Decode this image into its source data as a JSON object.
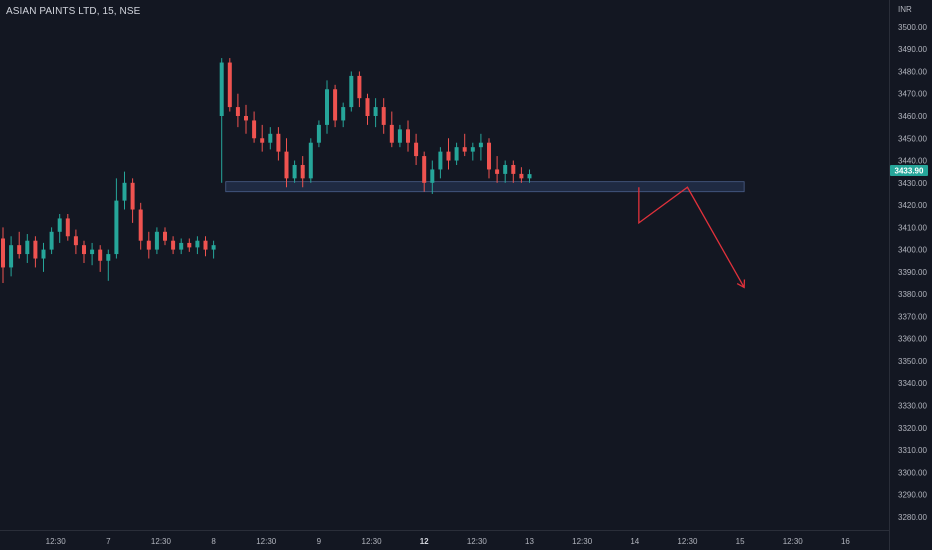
{
  "header": {
    "symbol_title": "ASIAN PAINTS LTD, 15, NSE"
  },
  "price_axis": {
    "currency": "INR"
  },
  "colors": {
    "background": "#131722",
    "up": "#26a69a",
    "down": "#ef5350",
    "zone_fill": "#2a3a5c",
    "zone_stroke": "#4a5f8a",
    "arrow": "#e0313b",
    "axis_text": "#b2b5be",
    "price_label": "#26a69a"
  },
  "chart_data": {
    "type": "candlestick",
    "title": "ASIAN PAINTS LTD, 15, NSE",
    "currency": "INR",
    "ylim": [
      3275,
      3504
    ],
    "y_ticks": [
      3280,
      3290,
      3300,
      3310,
      3320,
      3330,
      3340,
      3350,
      3360,
      3370,
      3380,
      3390,
      3400,
      3410,
      3420,
      3430,
      3440,
      3450,
      3460,
      3470,
      3480,
      3490,
      3500
    ],
    "x_ticks": [
      {
        "label": "12:30",
        "bar": 6.5,
        "bold": false
      },
      {
        "label": "7",
        "bar": 13,
        "bold": false
      },
      {
        "label": "12:30",
        "bar": 19.5,
        "bold": false
      },
      {
        "label": "8",
        "bar": 26,
        "bold": false
      },
      {
        "label": "12:30",
        "bar": 32.5,
        "bold": false
      },
      {
        "label": "9",
        "bar": 39,
        "bold": false
      },
      {
        "label": "12:30",
        "bar": 45.5,
        "bold": false
      },
      {
        "label": "12",
        "bar": 52,
        "bold": true
      },
      {
        "label": "12:30",
        "bar": 58.5,
        "bold": false
      },
      {
        "label": "13",
        "bar": 65,
        "bold": false
      },
      {
        "label": "12:30",
        "bar": 71.5,
        "bold": false
      },
      {
        "label": "14",
        "bar": 78,
        "bold": false
      },
      {
        "label": "12:30",
        "bar": 84.5,
        "bold": false
      },
      {
        "label": "15",
        "bar": 91,
        "bold": false
      },
      {
        "label": "12:30",
        "bar": 97.5,
        "bold": false
      },
      {
        "label": "16",
        "bar": 104,
        "bold": false
      }
    ],
    "last_price": "3433.90",
    "candles": [
      {
        "o": 3405,
        "h": 3410,
        "l": 3385,
        "c": 3392
      },
      {
        "o": 3392,
        "h": 3406,
        "l": 3388,
        "c": 3402
      },
      {
        "o": 3402,
        "h": 3408,
        "l": 3396,
        "c": 3398
      },
      {
        "o": 3398,
        "h": 3407,
        "l": 3394,
        "c": 3404
      },
      {
        "o": 3404,
        "h": 3406,
        "l": 3392,
        "c": 3396
      },
      {
        "o": 3396,
        "h": 3403,
        "l": 3390,
        "c": 3400
      },
      {
        "o": 3400,
        "h": 3410,
        "l": 3398,
        "c": 3408
      },
      {
        "o": 3408,
        "h": 3416,
        "l": 3403,
        "c": 3414
      },
      {
        "o": 3414,
        "h": 3416,
        "l": 3404,
        "c": 3406
      },
      {
        "o": 3406,
        "h": 3409,
        "l": 3398,
        "c": 3402
      },
      {
        "o": 3402,
        "h": 3404,
        "l": 3394,
        "c": 3398
      },
      {
        "o": 3398,
        "h": 3403,
        "l": 3393,
        "c": 3400
      },
      {
        "o": 3400,
        "h": 3402,
        "l": 3390,
        "c": 3395
      },
      {
        "o": 3395,
        "h": 3400,
        "l": 3386,
        "c": 3398
      },
      {
        "o": 3398,
        "h": 3432,
        "l": 3396,
        "c": 3422
      },
      {
        "o": 3422,
        "h": 3435,
        "l": 3418,
        "c": 3430
      },
      {
        "o": 3430,
        "h": 3432,
        "l": 3412,
        "c": 3418
      },
      {
        "o": 3418,
        "h": 3421,
        "l": 3400,
        "c": 3404
      },
      {
        "o": 3404,
        "h": 3408,
        "l": 3396,
        "c": 3400
      },
      {
        "o": 3400,
        "h": 3410,
        "l": 3398,
        "c": 3408
      },
      {
        "o": 3408,
        "h": 3410,
        "l": 3402,
        "c": 3404
      },
      {
        "o": 3404,
        "h": 3406,
        "l": 3398,
        "c": 3400
      },
      {
        "o": 3400,
        "h": 3405,
        "l": 3398,
        "c": 3403
      },
      {
        "o": 3403,
        "h": 3405,
        "l": 3399,
        "c": 3401
      },
      {
        "o": 3401,
        "h": 3406,
        "l": 3398,
        "c": 3404
      },
      {
        "o": 3404,
        "h": 3406,
        "l": 3397,
        "c": 3400
      },
      {
        "o": 3400,
        "h": 3404,
        "l": 3396,
        "c": 3402
      },
      {
        "o": 3460,
        "h": 3486,
        "l": 3430,
        "c": 3484
      },
      {
        "o": 3484,
        "h": 3486,
        "l": 3462,
        "c": 3464
      },
      {
        "o": 3464,
        "h": 3470,
        "l": 3455,
        "c": 3460
      },
      {
        "o": 3460,
        "h": 3465,
        "l": 3452,
        "c": 3458
      },
      {
        "o": 3458,
        "h": 3462,
        "l": 3448,
        "c": 3450
      },
      {
        "o": 3450,
        "h": 3456,
        "l": 3444,
        "c": 3448
      },
      {
        "o": 3448,
        "h": 3455,
        "l": 3445,
        "c": 3452
      },
      {
        "o": 3452,
        "h": 3455,
        "l": 3440,
        "c": 3444
      },
      {
        "o": 3444,
        "h": 3450,
        "l": 3428,
        "c": 3432
      },
      {
        "o": 3432,
        "h": 3440,
        "l": 3430,
        "c": 3438
      },
      {
        "o": 3438,
        "h": 3442,
        "l": 3428,
        "c": 3432
      },
      {
        "o": 3432,
        "h": 3450,
        "l": 3430,
        "c": 3448
      },
      {
        "o": 3448,
        "h": 3458,
        "l": 3446,
        "c": 3456
      },
      {
        "o": 3456,
        "h": 3476,
        "l": 3452,
        "c": 3472
      },
      {
        "o": 3472,
        "h": 3474,
        "l": 3455,
        "c": 3458
      },
      {
        "o": 3458,
        "h": 3466,
        "l": 3455,
        "c": 3464
      },
      {
        "o": 3464,
        "h": 3480,
        "l": 3462,
        "c": 3478
      },
      {
        "o": 3478,
        "h": 3480,
        "l": 3464,
        "c": 3468
      },
      {
        "o": 3468,
        "h": 3470,
        "l": 3456,
        "c": 3460
      },
      {
        "o": 3460,
        "h": 3468,
        "l": 3455,
        "c": 3464
      },
      {
        "o": 3464,
        "h": 3468,
        "l": 3452,
        "c": 3456
      },
      {
        "o": 3456,
        "h": 3462,
        "l": 3446,
        "c": 3448
      },
      {
        "o": 3448,
        "h": 3456,
        "l": 3446,
        "c": 3454
      },
      {
        "o": 3454,
        "h": 3458,
        "l": 3444,
        "c": 3448
      },
      {
        "o": 3448,
        "h": 3452,
        "l": 3438,
        "c": 3442
      },
      {
        "o": 3442,
        "h": 3444,
        "l": 3426,
        "c": 3430
      },
      {
        "o": 3430,
        "h": 3440,
        "l": 3425,
        "c": 3436
      },
      {
        "o": 3436,
        "h": 3446,
        "l": 3432,
        "c": 3444
      },
      {
        "o": 3444,
        "h": 3450,
        "l": 3436,
        "c": 3440
      },
      {
        "o": 3440,
        "h": 3448,
        "l": 3438,
        "c": 3446
      },
      {
        "o": 3446,
        "h": 3452,
        "l": 3442,
        "c": 3444
      },
      {
        "o": 3444,
        "h": 3448,
        "l": 3440,
        "c": 3446
      },
      {
        "o": 3446,
        "h": 3452,
        "l": 3440,
        "c": 3448
      },
      {
        "o": 3448,
        "h": 3450,
        "l": 3432,
        "c": 3436
      },
      {
        "o": 3436,
        "h": 3442,
        "l": 3430,
        "c": 3434
      },
      {
        "o": 3434,
        "h": 3440,
        "l": 3430,
        "c": 3438
      },
      {
        "o": 3438,
        "h": 3440,
        "l": 3430,
        "c": 3434
      },
      {
        "o": 3434,
        "h": 3437,
        "l": 3430,
        "c": 3432
      },
      {
        "o": 3432,
        "h": 3436,
        "l": 3430,
        "c": 3433.9
      }
    ],
    "support_zone": {
      "from_bar": 27.5,
      "to_bar": 91.5,
      "low": 3426,
      "high": 3430.5
    },
    "projection_path": [
      {
        "bar": 78.5,
        "price": 3428
      },
      {
        "bar": 78.5,
        "price": 3412
      },
      {
        "bar": 84.5,
        "price": 3428
      },
      {
        "bar": 91.5,
        "price": 3383
      }
    ]
  }
}
